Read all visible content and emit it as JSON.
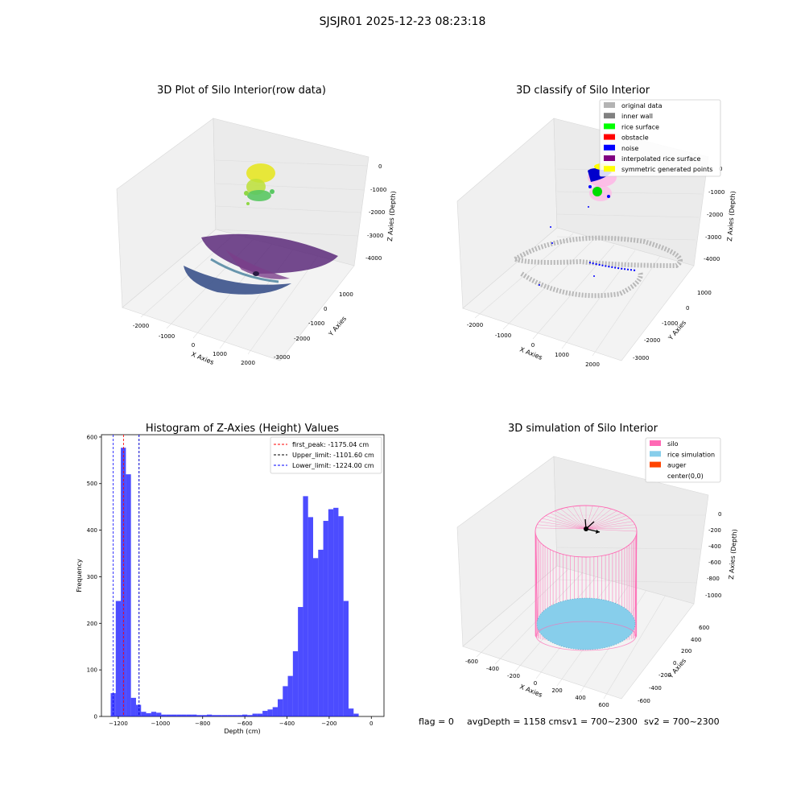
{
  "suptitle": "SJSJR01 2025-12-23 08:23:18",
  "footer": {
    "flag": "flag = 0",
    "avg": "avgDepth = 1158 cmsv1 = 700~2300",
    "sv2": "sv2 = 700~2300"
  },
  "chart_data": [
    {
      "type": "scatter",
      "title": "3D Plot of Silo Interior(row data)",
      "xlabel": "X Axies",
      "ylabel": "Y Axies",
      "zlabel": "Z Axies (Depth)",
      "x_ticks": [
        "-2000",
        "-1000",
        "0",
        "1000",
        "2000"
      ],
      "y_ticks": [
        "1000",
        "0",
        "-1000",
        "-2000",
        "-3000"
      ],
      "z_ticks": [
        "0",
        "-1000",
        "-2000",
        "-3000",
        "-4000"
      ],
      "colormap": "viridis"
    },
    {
      "type": "scatter",
      "title": "3D classify of Silo Interior",
      "xlabel": "X Axies",
      "ylabel": "Y Axies",
      "zlabel": "Z Axies (Depth)",
      "x_ticks": [
        "-2000",
        "-1000",
        "0",
        "1000",
        "2000"
      ],
      "y_ticks": [
        "1000",
        "0",
        "-1000",
        "-2000",
        "-3000"
      ],
      "z_ticks": [
        "0",
        "-1000",
        "-2000",
        "-3000",
        "-4000"
      ],
      "legend": [
        {
          "label": "original data",
          "color": "#b3b3b3"
        },
        {
          "label": "inner wall",
          "color": "#808080"
        },
        {
          "label": "rice surface",
          "color": "#00ff00"
        },
        {
          "label": "obstacle",
          "color": "#ff0000"
        },
        {
          "label": "noise",
          "color": "#0000ff"
        },
        {
          "label": "interpolated rice surface",
          "color": "#800080"
        },
        {
          "label": "symmetric generated points",
          "color": "#ffff00"
        }
      ],
      "legend_position": "top-right"
    },
    {
      "type": "bar",
      "title": "Histogram of Z-Axies (Height) Values",
      "xlabel": "Depth (cm)",
      "ylabel": "Frequency",
      "xlim": [
        -1280,
        60
      ],
      "ylim": [
        0,
        605
      ],
      "x_ticks": [
        -1200,
        -1000,
        -800,
        -600,
        -400,
        -200,
        0
      ],
      "y_ticks": [
        0,
        100,
        200,
        300,
        400,
        500,
        600
      ],
      "bin_edges": [
        -1236,
        -1212,
        -1188,
        -1164,
        -1140,
        -1116,
        -1092,
        -1068,
        -1044,
        -1020,
        -996,
        -972,
        -948,
        -924,
        -900,
        -876,
        -852,
        -828,
        -804,
        -780,
        -756,
        -732,
        -708,
        -684,
        -660,
        -636,
        -612,
        -588,
        -564,
        -540,
        -516,
        -492,
        -468,
        -444,
        -420,
        -396,
        -372,
        -348,
        -324,
        -300,
        -276,
        -252,
        -228,
        -204,
        -180,
        -156,
        -132,
        -108,
        -84,
        -60,
        -36,
        -12,
        12
      ],
      "values": [
        50,
        248,
        577,
        520,
        40,
        25,
        10,
        7,
        10,
        8,
        4,
        4,
        4,
        4,
        4,
        4,
        4,
        3,
        3,
        4,
        3,
        3,
        3,
        3,
        3,
        3,
        4,
        3,
        6,
        6,
        12,
        15,
        20,
        37,
        65,
        87,
        140,
        235,
        473,
        428,
        340,
        358,
        420,
        445,
        448,
        430,
        248,
        17,
        6,
        0,
        0,
        0
      ],
      "bar_color": "#0000ff",
      "bar_alpha": 0.7,
      "vlines": [
        {
          "x": -1175.04,
          "color": "#ff0000",
          "label": "first_peak: -1175.04 cm"
        },
        {
          "x": -1101.6,
          "color": "#000000",
          "label": "Upper_limit: -1101.60 cm"
        },
        {
          "x": -1224.0,
          "color": "#0000ff",
          "label": "Lower_limit: -1224.00 cm"
        }
      ],
      "extra_vlines": [
        {
          "x": -1101.6,
          "color": "#0000ff"
        }
      ],
      "legend_position": "top-right"
    },
    {
      "type": "scatter",
      "title": "3D simulation of Silo Interior",
      "xlabel": "X Axies",
      "ylabel": "Y Axies",
      "zlabel": "Z Axies (Depth)",
      "x_ticks": [
        "-600",
        "-400",
        "-200",
        "0",
        "200",
        "400",
        "600"
      ],
      "y_ticks": [
        "600",
        "400",
        "200",
        "0",
        "-200",
        "-400",
        "-600"
      ],
      "z_ticks": [
        "0",
        "-200",
        "-400",
        "-600",
        "-800",
        "-1000"
      ],
      "legend": [
        {
          "label": "silo",
          "color": "#ff69b4"
        },
        {
          "label": "rice simulation",
          "color": "#87ceeb"
        },
        {
          "label": "auger",
          "color": "#ff4500"
        },
        {
          "label": "center(0,0)",
          "color": ""
        }
      ],
      "legend_position": "top-right"
    }
  ]
}
